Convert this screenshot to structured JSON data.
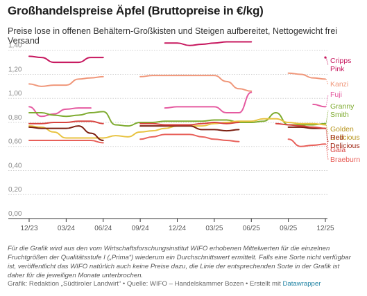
{
  "title": "Großhandelspreise Äpfel (Bruttopreise in €/kg)",
  "subtitle": "Preise lose in offenen Behältern-Großkisten und Steigen aufbereitet, Nettogewicht frei Versand",
  "notes": "Für die Grafik wird aus den vom Wirtschaftsforschungsinstitut WIFO erhobenen Mittelwerten für die einzelnen Fruchtgrößen der Qualitätsstufe I („Prima“) wiederum ein Durchschnittswert ermittelt. Falls eine Sorte nicht verfügbar ist, veröffentlicht das WIFO natürlich auch keine Preise dazu, die Linie der entsprechenden Sorte in der Grafik ist daher für die jeweiligen Monate unterbrochen.",
  "credits": {
    "text": "Grafik: Redaktion „Südtiroler Landwirt“ • Quelle: WIFO – Handelskammer Bozen • Erstellt mit",
    "tool": "Datawrapper"
  },
  "chart_data": {
    "type": "line",
    "ylim": [
      0,
      1.45
    ],
    "yticks": [
      0,
      0.2,
      0.4,
      0.6,
      0.8,
      1.0,
      1.2,
      1.4
    ],
    "ytick_labels": [
      "0,00",
      "0,20",
      "0,40",
      "0,60",
      "0,80",
      "1,00",
      "1,20",
      "1,40"
    ],
    "x": [
      "12/23",
      "01/24",
      "02/24",
      "03/24",
      "04/24",
      "05/24",
      "06/24",
      "07/24",
      "08/24",
      "09/24",
      "10/24",
      "11/24",
      "12/24",
      "01/25",
      "02/25",
      "03/25",
      "04/25",
      "05/25",
      "06/25",
      "07/25",
      "08/25",
      "09/25",
      "10/25",
      "11/25",
      "12/25"
    ],
    "xtick_indices": [
      0,
      3,
      6,
      9,
      12,
      15,
      18,
      21,
      24
    ],
    "xtick_labels": [
      "12/23",
      "03/24",
      "06/24",
      "09/24",
      "12/24",
      "03/25",
      "06/25",
      "09/25",
      "12/25"
    ],
    "grid": true,
    "legend": "right",
    "series": [
      {
        "name": "Cripps Pink",
        "color": "#c7185f",
        "values": [
          1.35,
          1.34,
          1.3,
          1.3,
          1.3,
          1.34,
          1.34,
          null,
          null,
          null,
          null,
          1.46,
          1.46,
          1.44,
          1.45,
          1.46,
          1.47,
          1.47,
          1.47,
          null,
          null,
          null,
          null,
          null,
          1.34
        ]
      },
      {
        "name": "Kanzi",
        "color": "#f0977a",
        "values": [
          1.12,
          1.1,
          1.11,
          1.11,
          1.16,
          1.17,
          1.18,
          null,
          null,
          1.18,
          1.19,
          1.19,
          1.19,
          1.19,
          1.19,
          1.19,
          1.14,
          1.08,
          1.06,
          null,
          null,
          1.21,
          1.2,
          1.17,
          1.16
        ]
      },
      {
        "name": "Fuji",
        "color": "#e55aa0",
        "values": [
          0.93,
          0.85,
          0.87,
          0.91,
          0.92,
          0.92,
          null,
          null,
          null,
          null,
          null,
          0.92,
          0.93,
          0.93,
          0.93,
          0.93,
          0.88,
          0.88,
          1.05,
          null,
          null,
          null,
          null,
          0.95,
          0.93
        ]
      },
      {
        "name": "Granny Smith",
        "color": "#7eab2f",
        "values": [
          0.88,
          0.88,
          0.86,
          0.85,
          0.86,
          0.88,
          0.89,
          0.78,
          0.77,
          0.8,
          0.8,
          0.81,
          0.81,
          0.81,
          0.81,
          0.82,
          0.82,
          0.8,
          0.8,
          0.81,
          0.88,
          0.78,
          0.78,
          0.78,
          0.79
        ]
      },
      {
        "name": "Golden Delicious",
        "color": "#e8c341",
        "values": [
          0.77,
          0.76,
          0.72,
          0.67,
          0.67,
          0.67,
          0.67,
          0.69,
          0.68,
          0.72,
          0.73,
          0.75,
          0.77,
          0.77,
          0.77,
          0.79,
          0.8,
          0.81,
          0.81,
          0.83,
          0.83,
          0.8,
          0.79,
          0.79,
          0.78
        ]
      },
      {
        "name": "Red Delicious",
        "color": "#7b1e10",
        "values": [
          0.76,
          0.75,
          0.75,
          0.75,
          0.77,
          0.71,
          0.65,
          null,
          null,
          0.77,
          0.77,
          0.77,
          0.77,
          0.77,
          0.74,
          0.74,
          0.73,
          0.74,
          null,
          null,
          null,
          0.76,
          0.76,
          0.75,
          0.75
        ]
      },
      {
        "name": "Gala",
        "color": "#d8433f",
        "values": [
          0.79,
          0.79,
          0.8,
          0.8,
          0.81,
          0.81,
          0.79,
          null,
          null,
          0.79,
          0.79,
          0.78,
          0.78,
          0.78,
          0.79,
          0.8,
          0.79,
          0.8,
          null,
          null,
          0.79,
          0.78,
          0.77,
          0.76,
          0.75
        ]
      },
      {
        "name": "Braeburn",
        "color": "#e8605a",
        "values": [
          0.65,
          0.65,
          0.65,
          0.65,
          0.65,
          0.65,
          0.63,
          null,
          null,
          0.66,
          0.68,
          0.7,
          0.7,
          0.7,
          0.68,
          0.66,
          0.65,
          0.64,
          null,
          null,
          null,
          0.66,
          0.6,
          0.61,
          0.62
        ]
      }
    ],
    "legend_entries": [
      {
        "lines": [
          "Cripps",
          "Pink"
        ],
        "color": "#c7185f"
      },
      {
        "lines": [
          "Kanzi"
        ],
        "color": "#f0977a"
      },
      {
        "lines": [
          "Fuji"
        ],
        "color": "#e55aa0"
      },
      {
        "lines": [
          "Granny",
          "Smith"
        ],
        "color": "#7eab2f"
      },
      {
        "lines": [
          "Golden",
          "Delicious"
        ],
        "color": "#b8951d"
      },
      {
        "lines": [
          "Red",
          "Delicious"
        ],
        "color": "#a02a18"
      },
      {
        "lines": [
          "Gala"
        ],
        "color": "#d8433f"
      },
      {
        "lines": [
          "Braeburn"
        ],
        "color": "#e8605a"
      }
    ]
  }
}
